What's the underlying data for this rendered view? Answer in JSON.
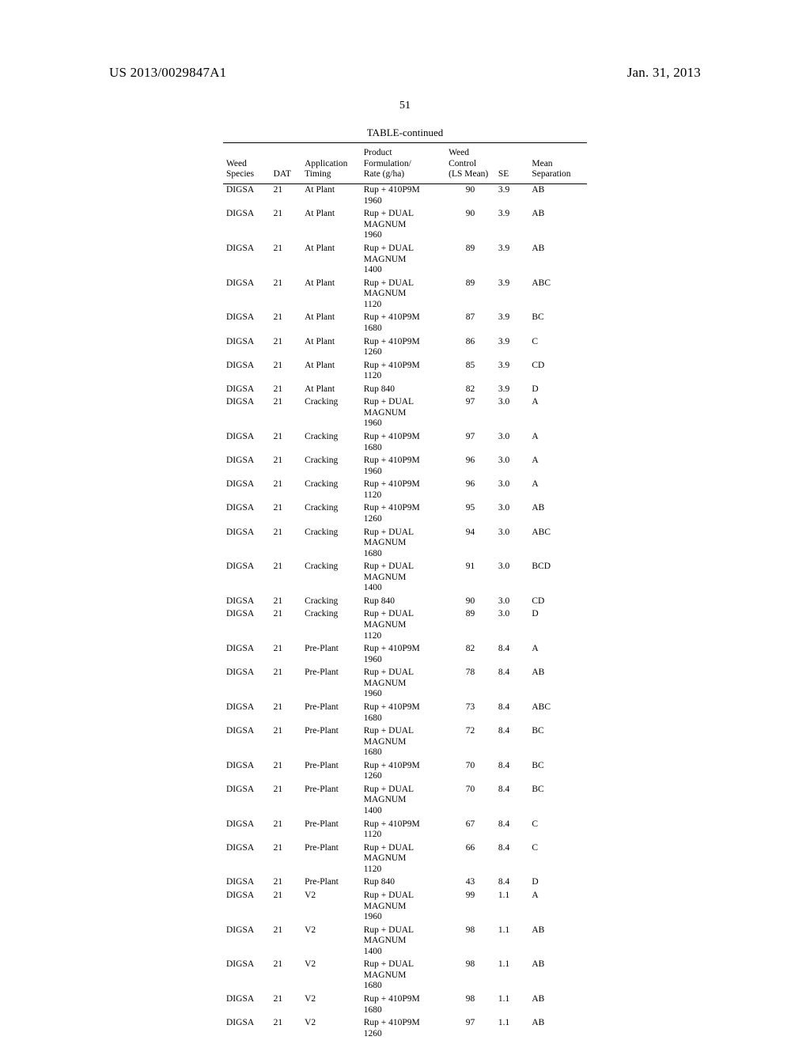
{
  "doc": {
    "pub_number": "US 2013/0029847A1",
    "pub_date": "Jan. 31, 2013",
    "page_number": "51",
    "table_continued": "TABLE-continued"
  },
  "table": {
    "columns": {
      "species": [
        "Weed",
        "Species"
      ],
      "dat": [
        "",
        "DAT"
      ],
      "timing": [
        "Application",
        "Timing"
      ],
      "product": [
        "Product",
        "Formulation/",
        "Rate (g/ha)"
      ],
      "control": [
        "Weed",
        "Control",
        "(LS Mean)"
      ],
      "se": [
        "",
        "SE"
      ],
      "mean": [
        "Mean",
        "Separation"
      ]
    },
    "rows": [
      {
        "species": "DIGSA",
        "dat": "21",
        "timing": "At Plant",
        "product": [
          "Rup + 410P9M",
          "1960"
        ],
        "control": "90",
        "se": "3.9",
        "mean": "AB"
      },
      {
        "species": "DIGSA",
        "dat": "21",
        "timing": "At Plant",
        "product": [
          "Rup + DUAL",
          "MAGNUM",
          "1960"
        ],
        "control": "90",
        "se": "3.9",
        "mean": "AB"
      },
      {
        "species": "DIGSA",
        "dat": "21",
        "timing": "At Plant",
        "product": [
          "Rup + DUAL",
          "MAGNUM",
          "1400"
        ],
        "control": "89",
        "se": "3.9",
        "mean": "AB"
      },
      {
        "species": "DIGSA",
        "dat": "21",
        "timing": "At Plant",
        "product": [
          "Rup + DUAL",
          "MAGNUM",
          "1120"
        ],
        "control": "89",
        "se": "3.9",
        "mean": "ABC"
      },
      {
        "species": "DIGSA",
        "dat": "21",
        "timing": "At Plant",
        "product": [
          "Rup + 410P9M",
          "1680"
        ],
        "control": "87",
        "se": "3.9",
        "mean": "BC"
      },
      {
        "species": "DIGSA",
        "dat": "21",
        "timing": "At Plant",
        "product": [
          "Rup + 410P9M",
          "1260"
        ],
        "control": "86",
        "se": "3.9",
        "mean": "C"
      },
      {
        "species": "DIGSA",
        "dat": "21",
        "timing": "At Plant",
        "product": [
          "Rup + 410P9M",
          "1120"
        ],
        "control": "85",
        "se": "3.9",
        "mean": "CD"
      },
      {
        "species": "DIGSA",
        "dat": "21",
        "timing": "At Plant",
        "product": [
          "Rup 840"
        ],
        "control": "82",
        "se": "3.9",
        "mean": "D"
      },
      {
        "species": "DIGSA",
        "dat": "21",
        "timing": "Cracking",
        "product": [
          "Rup + DUAL",
          "MAGNUM",
          "1960"
        ],
        "control": "97",
        "se": "3.0",
        "mean": "A"
      },
      {
        "species": "DIGSA",
        "dat": "21",
        "timing": "Cracking",
        "product": [
          "Rup + 410P9M",
          "1680"
        ],
        "control": "97",
        "se": "3.0",
        "mean": "A"
      },
      {
        "species": "DIGSA",
        "dat": "21",
        "timing": "Cracking",
        "product": [
          "Rup + 410P9M",
          "1960"
        ],
        "control": "96",
        "se": "3.0",
        "mean": "A"
      },
      {
        "species": "DIGSA",
        "dat": "21",
        "timing": "Cracking",
        "product": [
          "Rup + 410P9M",
          "1120"
        ],
        "control": "96",
        "se": "3.0",
        "mean": "A"
      },
      {
        "species": "DIGSA",
        "dat": "21",
        "timing": "Cracking",
        "product": [
          "Rup + 410P9M",
          "1260"
        ],
        "control": "95",
        "se": "3.0",
        "mean": "AB"
      },
      {
        "species": "DIGSA",
        "dat": "21",
        "timing": "Cracking",
        "product": [
          "Rup + DUAL",
          "MAGNUM",
          "1680"
        ],
        "control": "94",
        "se": "3.0",
        "mean": "ABC"
      },
      {
        "species": "DIGSA",
        "dat": "21",
        "timing": "Cracking",
        "product": [
          "Rup + DUAL",
          "MAGNUM",
          "1400"
        ],
        "control": "91",
        "se": "3.0",
        "mean": "BCD"
      },
      {
        "species": "DIGSA",
        "dat": "21",
        "timing": "Cracking",
        "product": [
          "Rup 840"
        ],
        "control": "90",
        "se": "3.0",
        "mean": "CD"
      },
      {
        "species": "DIGSA",
        "dat": "21",
        "timing": "Cracking",
        "product": [
          "Rup + DUAL",
          "MAGNUM",
          "1120"
        ],
        "control": "89",
        "se": "3.0",
        "mean": "D"
      },
      {
        "species": "DIGSA",
        "dat": "21",
        "timing": "Pre-Plant",
        "product": [
          "Rup + 410P9M",
          "1960"
        ],
        "control": "82",
        "se": "8.4",
        "mean": "A"
      },
      {
        "species": "DIGSA",
        "dat": "21",
        "timing": "Pre-Plant",
        "product": [
          "Rup + DUAL",
          "MAGNUM",
          "1960"
        ],
        "control": "78",
        "se": "8.4",
        "mean": "AB"
      },
      {
        "species": "DIGSA",
        "dat": "21",
        "timing": "Pre-Plant",
        "product": [
          "Rup + 410P9M",
          "1680"
        ],
        "control": "73",
        "se": "8.4",
        "mean": "ABC"
      },
      {
        "species": "DIGSA",
        "dat": "21",
        "timing": "Pre-Plant",
        "product": [
          "Rup + DUAL",
          "MAGNUM",
          "1680"
        ],
        "control": "72",
        "se": "8.4",
        "mean": "BC"
      },
      {
        "species": "DIGSA",
        "dat": "21",
        "timing": "Pre-Plant",
        "product": [
          "Rup + 410P9M",
          "1260"
        ],
        "control": "70",
        "se": "8.4",
        "mean": "BC"
      },
      {
        "species": "DIGSA",
        "dat": "21",
        "timing": "Pre-Plant",
        "product": [
          "Rup + DUAL",
          "MAGNUM",
          "1400"
        ],
        "control": "70",
        "se": "8.4",
        "mean": "BC"
      },
      {
        "species": "DIGSA",
        "dat": "21",
        "timing": "Pre-Plant",
        "product": [
          "Rup + 410P9M",
          "1120"
        ],
        "control": "67",
        "se": "8.4",
        "mean": "C"
      },
      {
        "species": "DIGSA",
        "dat": "21",
        "timing": "Pre-Plant",
        "product": [
          "Rup + DUAL",
          "MAGNUM",
          "1120"
        ],
        "control": "66",
        "se": "8.4",
        "mean": "C"
      },
      {
        "species": "DIGSA",
        "dat": "21",
        "timing": "Pre-Plant",
        "product": [
          "Rup 840"
        ],
        "control": "43",
        "se": "8.4",
        "mean": "D"
      },
      {
        "species": "DIGSA",
        "dat": "21",
        "timing": "V2",
        "product": [
          "Rup + DUAL",
          "MAGNUM",
          "1960"
        ],
        "control": "99",
        "se": "1.1",
        "mean": "A"
      },
      {
        "species": "DIGSA",
        "dat": "21",
        "timing": "V2",
        "product": [
          "Rup + DUAL",
          "MAGNUM",
          "1400"
        ],
        "control": "98",
        "se": "1.1",
        "mean": "AB"
      },
      {
        "species": "DIGSA",
        "dat": "21",
        "timing": "V2",
        "product": [
          "Rup + DUAL",
          "MAGNUM",
          "1680"
        ],
        "control": "98",
        "se": "1.1",
        "mean": "AB"
      },
      {
        "species": "DIGSA",
        "dat": "21",
        "timing": "V2",
        "product": [
          "Rup + 410P9M",
          "1680"
        ],
        "control": "98",
        "se": "1.1",
        "mean": "AB"
      },
      {
        "species": "DIGSA",
        "dat": "21",
        "timing": "V2",
        "product": [
          "Rup + 410P9M",
          "1260"
        ],
        "control": "97",
        "se": "1.1",
        "mean": "AB"
      }
    ]
  }
}
